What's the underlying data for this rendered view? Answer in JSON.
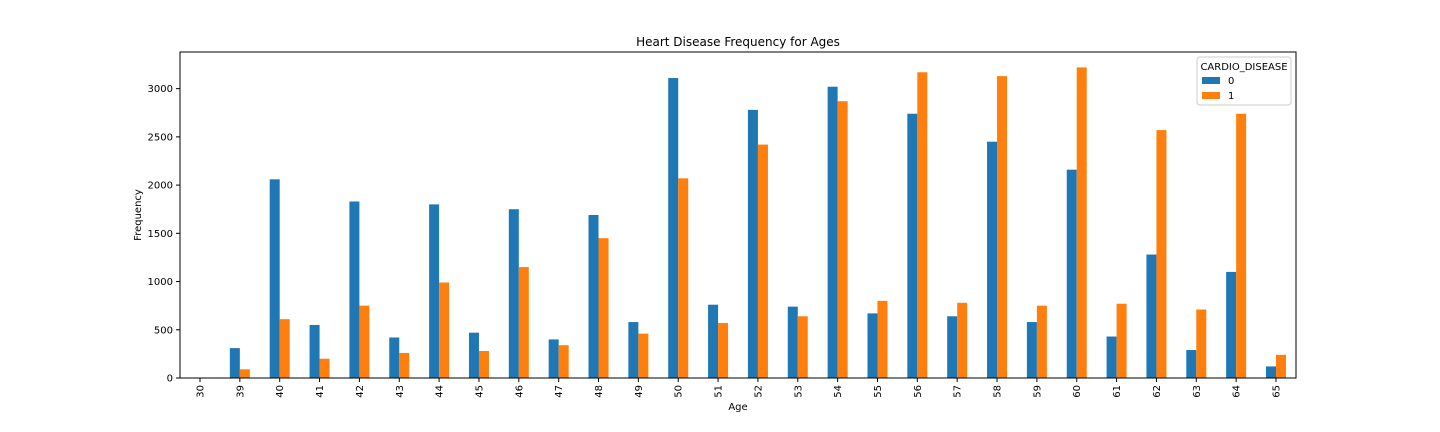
{
  "chart_data": {
    "type": "bar",
    "title": "Heart Disease Frequency for Ages",
    "xlabel": "Age",
    "ylabel": "Frequency",
    "categories": [
      "30",
      "39",
      "40",
      "41",
      "42",
      "43",
      "44",
      "45",
      "46",
      "47",
      "48",
      "49",
      "50",
      "51",
      "52",
      "53",
      "54",
      "55",
      "56",
      "57",
      "58",
      "59",
      "60",
      "61",
      "62",
      "63",
      "64",
      "65"
    ],
    "series": [
      {
        "name": "0",
        "color": "#1f77b4",
        "values": [
          1,
          310,
          2060,
          550,
          1830,
          420,
          1800,
          470,
          1750,
          400,
          1690,
          580,
          3110,
          760,
          2780,
          740,
          3020,
          670,
          2740,
          640,
          2450,
          580,
          2160,
          430,
          1280,
          290,
          1100,
          120
        ]
      },
      {
        "name": "1",
        "color": "#ff7f0e",
        "values": [
          0,
          90,
          610,
          200,
          750,
          260,
          990,
          280,
          1150,
          340,
          1450,
          460,
          2070,
          570,
          2420,
          640,
          2870,
          800,
          3170,
          780,
          3130,
          750,
          3220,
          770,
          2570,
          710,
          2740,
          240
        ]
      }
    ],
    "ylim": [
      0,
      3380
    ],
    "yticks": [
      0,
      500,
      1000,
      1500,
      2000,
      2500,
      3000
    ],
    "grid": false,
    "legend": {
      "title": "CARDIO_DISEASE",
      "placement": "top-right"
    }
  }
}
